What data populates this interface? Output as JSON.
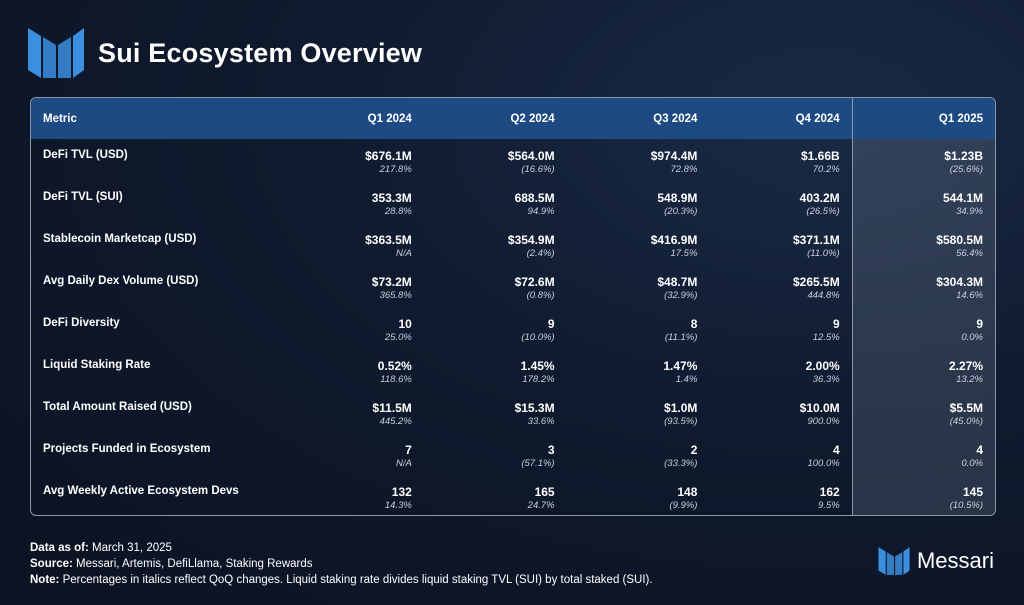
{
  "header": {
    "title": "Sui Ecosystem Overview",
    "logo_icon": "messari-logo-icon"
  },
  "colors": {
    "accent": "#3b8fe0",
    "header_row": "#1d4a82",
    "background": "#0f1a2e"
  },
  "table": {
    "columns": [
      "Metric",
      "Q1 2024",
      "Q2 2024",
      "Q3 2024",
      "Q4 2024",
      "Q1 2025"
    ],
    "rows": [
      {
        "metric": "DeFi TVL (USD)",
        "cells": [
          {
            "v": "$676.1M",
            "c": "217.8%"
          },
          {
            "v": "$564.0M",
            "c": "(16.6%)"
          },
          {
            "v": "$974.4M",
            "c": "72.8%"
          },
          {
            "v": "$1.66B",
            "c": "70.2%"
          },
          {
            "v": "$1.23B",
            "c": "(25.6%)"
          }
        ]
      },
      {
        "metric": "DeFi TVL (SUI)",
        "cells": [
          {
            "v": "353.3M",
            "c": "28.8%"
          },
          {
            "v": "688.5M",
            "c": "94.9%"
          },
          {
            "v": "548.9M",
            "c": "(20.3%)"
          },
          {
            "v": "403.2M",
            "c": "(26.5%)"
          },
          {
            "v": "544.1M",
            "c": "34.9%"
          }
        ]
      },
      {
        "metric": "Stablecoin Marketcap (USD)",
        "cells": [
          {
            "v": "$363.5M",
            "c": "N/A"
          },
          {
            "v": "$354.9M",
            "c": "(2.4%)"
          },
          {
            "v": "$416.9M",
            "c": "17.5%"
          },
          {
            "v": "$371.1M",
            "c": "(11.0%)"
          },
          {
            "v": "$580.5M",
            "c": "56.4%"
          }
        ]
      },
      {
        "metric": "Avg Daily Dex Volume (USD)",
        "cells": [
          {
            "v": "$73.2M",
            "c": "365.8%"
          },
          {
            "v": "$72.6M",
            "c": "(0.8%)"
          },
          {
            "v": "$48.7M",
            "c": "(32.9%)"
          },
          {
            "v": "$265.5M",
            "c": "444.8%"
          },
          {
            "v": "$304.3M",
            "c": "14.6%"
          }
        ]
      },
      {
        "metric": "DeFi Diversity",
        "cells": [
          {
            "v": "10",
            "c": "25.0%"
          },
          {
            "v": "9",
            "c": "(10.0%)"
          },
          {
            "v": "8",
            "c": "(11.1%)"
          },
          {
            "v": "9",
            "c": "12.5%"
          },
          {
            "v": "9",
            "c": "0.0%"
          }
        ]
      },
      {
        "metric": "Liquid Staking Rate",
        "cells": [
          {
            "v": "0.52%",
            "c": "118.6%"
          },
          {
            "v": "1.45%",
            "c": "178.2%"
          },
          {
            "v": "1.47%",
            "c": "1.4%"
          },
          {
            "v": "2.00%",
            "c": "36.3%"
          },
          {
            "v": "2.27%",
            "c": "13.2%"
          }
        ]
      },
      {
        "metric": "Total Amount Raised (USD)",
        "cells": [
          {
            "v": "$11.5M",
            "c": "445.2%"
          },
          {
            "v": "$15.3M",
            "c": "33.6%"
          },
          {
            "v": "$1.0M",
            "c": "(93.5%)"
          },
          {
            "v": "$10.0M",
            "c": "900.0%"
          },
          {
            "v": "$5.5M",
            "c": "(45.0%)"
          }
        ]
      },
      {
        "metric": "Projects Funded in Ecosystem",
        "cells": [
          {
            "v": "7",
            "c": "N/A"
          },
          {
            "v": "3",
            "c": "(57.1%)"
          },
          {
            "v": "2",
            "c": "(33.3%)"
          },
          {
            "v": "4",
            "c": "100.0%"
          },
          {
            "v": "4",
            "c": "0.0%"
          }
        ]
      },
      {
        "metric": "Avg Weekly Active Ecosystem Devs",
        "cells": [
          {
            "v": "132",
            "c": "14.3%"
          },
          {
            "v": "165",
            "c": "24.7%"
          },
          {
            "v": "148",
            "c": "(9.9%)"
          },
          {
            "v": "162",
            "c": "9.5%"
          },
          {
            "v": "145",
            "c": "(10.5%)"
          }
        ]
      }
    ]
  },
  "footer": {
    "data_label": "Data as of:",
    "data_value": " March 31, 2025",
    "source_label": "Source:",
    "source_value": " Messari, Artemis, DefiLlama, Staking Rewards",
    "note_label": "Note:",
    "note_value": " Percentages in italics reflect QoQ changes. Liquid staking rate divides liquid staking TVL (SUI) by total staked (SUI)."
  },
  "brand": {
    "name": "Messari",
    "icon": "messari-logo-icon"
  }
}
